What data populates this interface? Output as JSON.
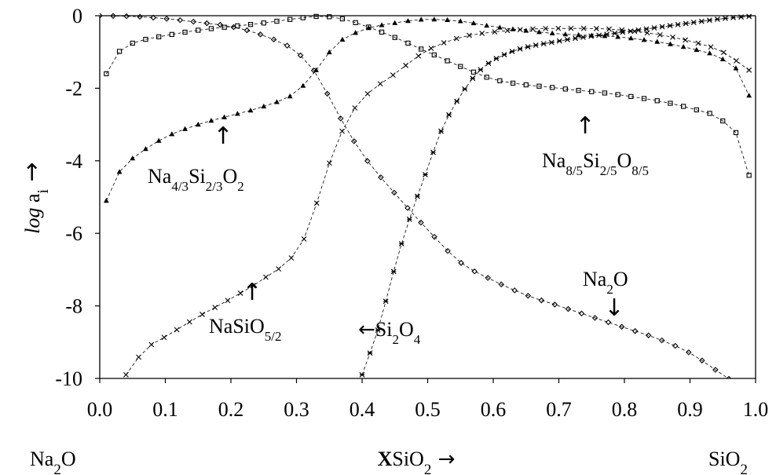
{
  "chart_data": {
    "type": "scatter",
    "title": "",
    "ylabel": {
      "italic": "log",
      "main": "a",
      "sub": "i",
      "arrow": "→"
    },
    "xlabel": {
      "bold": "X",
      "main": "SiO",
      "sub": "2",
      "arrow": "→"
    },
    "xlim": [
      0.0,
      1.0
    ],
    "ylim": [
      -10,
      0
    ],
    "grid": false,
    "legend": "none",
    "x_ticks": [
      "0.0",
      "0.1",
      "0.2",
      "0.3",
      "0.4",
      "0.5",
      "0.6",
      "0.7",
      "0.8",
      "0.9",
      "1.0"
    ],
    "y_ticks": [
      "0",
      "-2",
      "-4",
      "-6",
      "-8",
      "-10"
    ],
    "endpoint_labels": {
      "left": {
        "main": "Na",
        "sub": "2",
        "tail": "O"
      },
      "right": {
        "main": "SiO",
        "sub": "2",
        "tail": ""
      }
    },
    "annotations": [
      {
        "id": "na43",
        "parts": [
          [
            "Na",
            ""
          ],
          [
            "4/3",
            "s"
          ],
          [
            "Si",
            ""
          ],
          [
            "2/3",
            "s"
          ],
          [
            "O",
            ""
          ],
          [
            "2",
            "s"
          ]
        ],
        "arrow": "↑"
      },
      {
        "id": "na85",
        "parts": [
          [
            "Na",
            ""
          ],
          [
            "8/5",
            "s"
          ],
          [
            "Si",
            ""
          ],
          [
            "2/5",
            "s"
          ],
          [
            "O",
            ""
          ],
          [
            "8/5",
            "s"
          ]
        ],
        "arrow": "↑"
      },
      {
        "id": "nasio",
        "parts": [
          [
            "NaSiO",
            ""
          ],
          [
            "5/2",
            "s"
          ]
        ],
        "arrow": "↑"
      },
      {
        "id": "si2o4",
        "parts": [
          [
            "Si",
            ""
          ],
          [
            "2",
            "s"
          ],
          [
            "O",
            ""
          ],
          [
            "4",
            "s"
          ]
        ],
        "arrow": "←"
      },
      {
        "id": "na2o",
        "parts": [
          [
            "Na",
            ""
          ],
          [
            "2",
            "s"
          ],
          [
            "O",
            ""
          ]
        ],
        "arrow": "↓"
      }
    ],
    "series": [
      {
        "marker": "diamond",
        "x": [
          0.0,
          0.05,
          0.1,
          0.15,
          0.2,
          0.25,
          0.3,
          0.33,
          0.36,
          0.4,
          0.45,
          0.5,
          0.55,
          0.6,
          0.65,
          0.7,
          0.75,
          0.8,
          0.85,
          0.9,
          0.95,
          1.0
        ],
        "y": [
          0,
          -0.02,
          -0.08,
          -0.18,
          -0.3,
          -0.55,
          -1.0,
          -1.6,
          -2.6,
          -3.8,
          -4.9,
          -5.9,
          -6.8,
          -7.3,
          -7.7,
          -8.0,
          -8.3,
          -8.6,
          -8.9,
          -9.3,
          -9.9,
          -10.5
        ]
      },
      {
        "marker": "square",
        "x": [
          0.01,
          0.02,
          0.04,
          0.06,
          0.1,
          0.15,
          0.2,
          0.25,
          0.3,
          0.33,
          0.36,
          0.4,
          0.45,
          0.5,
          0.55,
          0.6,
          0.7,
          0.8,
          0.9,
          0.95,
          0.98,
          0.99
        ],
        "y": [
          -1.6,
          -1.2,
          -0.85,
          -0.7,
          -0.55,
          -0.4,
          -0.3,
          -0.2,
          -0.08,
          -0.02,
          -0.05,
          -0.25,
          -0.6,
          -1.0,
          -1.4,
          -1.75,
          -2.0,
          -2.2,
          -2.55,
          -2.9,
          -3.6,
          -4.4
        ]
      },
      {
        "marker": "triangle",
        "x": [
          0.01,
          0.02,
          0.04,
          0.06,
          0.1,
          0.15,
          0.2,
          0.25,
          0.3,
          0.33,
          0.36,
          0.4,
          0.45,
          0.5,
          0.55,
          0.6,
          0.7,
          0.8,
          0.9,
          0.95,
          0.98,
          0.99
        ],
        "y": [
          -5.1,
          -4.6,
          -4.1,
          -3.8,
          -3.35,
          -3.0,
          -2.75,
          -2.5,
          -2.1,
          -1.5,
          -0.8,
          -0.4,
          -0.2,
          -0.1,
          -0.15,
          -0.3,
          -0.5,
          -0.6,
          -0.9,
          -1.2,
          -1.7,
          -2.2
        ]
      },
      {
        "marker": "x",
        "x": [
          0.04,
          0.06,
          0.08,
          0.1,
          0.15,
          0.2,
          0.25,
          0.3,
          0.32,
          0.34,
          0.36,
          0.38,
          0.4,
          0.45,
          0.5,
          0.55,
          0.6,
          0.7,
          0.8,
          0.9,
          0.95,
          0.99
        ],
        "y": [
          -9.9,
          -9.4,
          -9.05,
          -8.85,
          -8.3,
          -7.8,
          -7.25,
          -6.5,
          -5.8,
          -4.6,
          -3.6,
          -2.8,
          -2.3,
          -1.6,
          -0.95,
          -0.6,
          -0.45,
          -0.35,
          -0.4,
          -0.7,
          -1.0,
          -1.5
        ]
      },
      {
        "marker": "star",
        "x": [
          0.4,
          0.41,
          0.42,
          0.43,
          0.44,
          0.46,
          0.48,
          0.5,
          0.52,
          0.55,
          0.58,
          0.62,
          0.7,
          0.8,
          0.9,
          0.95,
          0.99
        ],
        "y": [
          -9.9,
          -9.4,
          -8.9,
          -8.3,
          -7.6,
          -6.3,
          -5.2,
          -4.2,
          -3.2,
          -2.2,
          -1.5,
          -1.05,
          -0.7,
          -0.45,
          -0.2,
          -0.08,
          -0.02
        ]
      }
    ]
  }
}
